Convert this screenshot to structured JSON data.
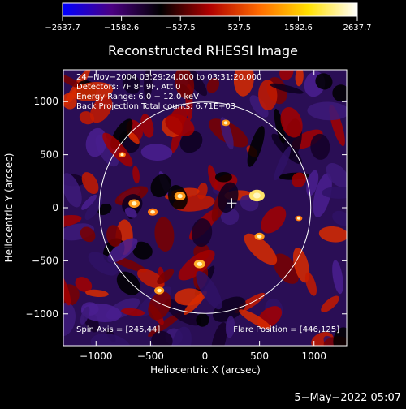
{
  "colorbar": {
    "ticks": [
      "-2637.7",
      "-1582.6",
      "-527.5",
      "527.5",
      "1582.6",
      "2637.7"
    ],
    "range": [
      -2637.7,
      2637.7
    ],
    "colormap": [
      "#0000ff",
      "#4b0082",
      "#000000",
      "#b00000",
      "#ff6a00",
      "#ffe000",
      "#ffffff"
    ]
  },
  "chart_data": {
    "type": "heatmap",
    "title": "Reconstructed RHESSI Image",
    "xlabel": "Heliocentric X (arcsec)",
    "ylabel": "Heliocentric Y (arcsec)",
    "xlim": [
      -1300,
      1300
    ],
    "ylim": [
      -1300,
      1300
    ],
    "xticks": [
      -1000,
      -500,
      0,
      500,
      1000
    ],
    "yticks": [
      1000,
      500,
      0,
      -500,
      -1000
    ],
    "xtick_labels": [
      "−1000",
      "−500",
      "0",
      "500",
      "1000"
    ],
    "ytick_labels": [
      "1000",
      "500",
      "0",
      "−500",
      "−1000"
    ],
    "info_lines": [
      "24−Nov−2004 03:29:24.000 to 03:31:20.000",
      "Detectors: 7F 8F 9F, Att 0",
      "Energy Range: 6.0 − 12.0 keV",
      "Back Projection    Total counts: 6.71E+03"
    ],
    "spin_axis": "Spin Axis = [245,44]",
    "flare_position_text": "Flare Position = [446,125]",
    "flare_position": [
      446,
      125
    ],
    "spin_axis_position": [
      245,
      44
    ],
    "solar_limb_radius": 970,
    "circle_color": "#ffffff"
  },
  "footer": {
    "timestamp": "5−May−2022 05:07"
  }
}
